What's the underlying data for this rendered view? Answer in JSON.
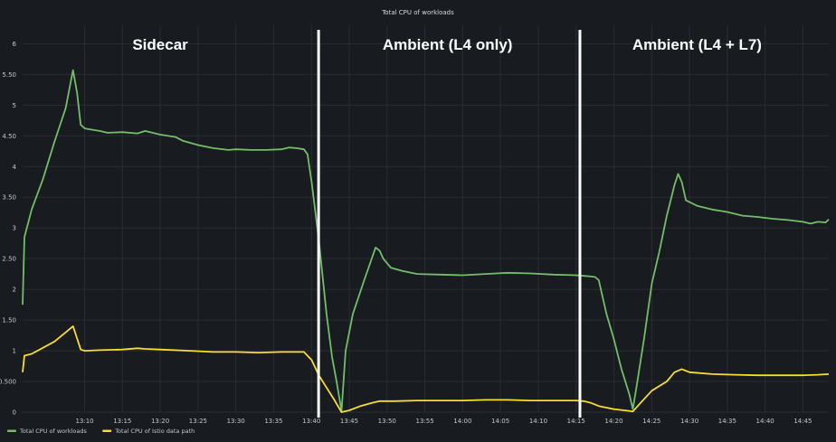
{
  "chart_data": {
    "type": "line",
    "title": "Total CPU of workloads",
    "xlabel": "",
    "ylabel": "",
    "xlim": [
      13.03,
      14.807
    ],
    "ylim": [
      0,
      6.3
    ],
    "grid": true,
    "legend_position": "bottom-left",
    "y_ticks": [
      {
        "v": 0,
        "label": "0"
      },
      {
        "v": 0.5,
        "label": "0.500"
      },
      {
        "v": 1,
        "label": "1"
      },
      {
        "v": 1.5,
        "label": "1.50"
      },
      {
        "v": 2,
        "label": "2"
      },
      {
        "v": 2.5,
        "label": "2.50"
      },
      {
        "v": 3,
        "label": "3"
      },
      {
        "v": 3.5,
        "label": "3.50"
      },
      {
        "v": 4,
        "label": "4"
      },
      {
        "v": 4.5,
        "label": "4.50"
      },
      {
        "v": 5,
        "label": "5"
      },
      {
        "v": 5.5,
        "label": "5.50"
      },
      {
        "v": 6,
        "label": "6"
      }
    ],
    "x_ticks": [
      {
        "v": 13.1667,
        "label": "13:10"
      },
      {
        "v": 13.25,
        "label": "13:15"
      },
      {
        "v": 13.3333,
        "label": "13:20"
      },
      {
        "v": 13.4167,
        "label": "13:25"
      },
      {
        "v": 13.5,
        "label": "13:30"
      },
      {
        "v": 13.5833,
        "label": "13:35"
      },
      {
        "v": 13.6667,
        "label": "13:40"
      },
      {
        "v": 13.75,
        "label": "13:45"
      },
      {
        "v": 13.8333,
        "label": "13:50"
      },
      {
        "v": 13.9167,
        "label": "13:55"
      },
      {
        "v": 14.0,
        "label": "14:00"
      },
      {
        "v": 14.0833,
        "label": "14:05"
      },
      {
        "v": 14.1667,
        "label": "14:10"
      },
      {
        "v": 14.25,
        "label": "14:15"
      },
      {
        "v": 14.3333,
        "label": "14:20"
      },
      {
        "v": 14.4167,
        "label": "14:25"
      },
      {
        "v": 14.5,
        "label": "14:30"
      },
      {
        "v": 14.5833,
        "label": "14:35"
      },
      {
        "v": 14.6667,
        "label": "14:40"
      },
      {
        "v": 14.75,
        "label": "14:45"
      }
    ],
    "dividers": [
      13.6824,
      14.2585
    ],
    "regions": [
      {
        "label": "Sidecar",
        "x": 13.3333
      },
      {
        "label": "Ambient (L4 only)",
        "x": 13.9667
      },
      {
        "label": "Ambient (L4 + L7)",
        "x": 14.5167
      }
    ],
    "series": [
      {
        "name": "Total CPU of workloads",
        "color": "#73bf69",
        "points": [
          [
            13.03,
            1.75
          ],
          [
            13.034,
            2.85
          ],
          [
            13.05,
            3.3
          ],
          [
            13.075,
            3.8
          ],
          [
            13.1,
            4.4
          ],
          [
            13.125,
            4.95
          ],
          [
            13.141,
            5.57
          ],
          [
            13.15,
            5.2
          ],
          [
            13.158,
            4.68
          ],
          [
            13.167,
            4.62
          ],
          [
            13.183,
            4.6
          ],
          [
            13.2,
            4.58
          ],
          [
            13.217,
            4.55
          ],
          [
            13.25,
            4.56
          ],
          [
            13.283,
            4.54
          ],
          [
            13.3,
            4.58
          ],
          [
            13.333,
            4.52
          ],
          [
            13.367,
            4.48
          ],
          [
            13.383,
            4.42
          ],
          [
            13.417,
            4.35
          ],
          [
            13.45,
            4.3
          ],
          [
            13.483,
            4.27
          ],
          [
            13.5,
            4.28
          ],
          [
            13.533,
            4.27
          ],
          [
            13.567,
            4.27
          ],
          [
            13.6,
            4.28
          ],
          [
            13.617,
            4.31
          ],
          [
            13.633,
            4.3
          ],
          [
            13.65,
            4.28
          ],
          [
            13.658,
            4.2
          ],
          [
            13.667,
            3.75
          ],
          [
            13.683,
            2.8
          ],
          [
            13.7,
            1.6
          ],
          [
            13.712,
            0.9
          ],
          [
            13.722,
            0.5
          ],
          [
            13.733,
            0.02
          ],
          [
            13.742,
            1.0
          ],
          [
            13.758,
            1.6
          ],
          [
            13.783,
            2.15
          ],
          [
            13.808,
            2.68
          ],
          [
            13.817,
            2.63
          ],
          [
            13.825,
            2.5
          ],
          [
            13.842,
            2.35
          ],
          [
            13.867,
            2.3
          ],
          [
            13.9,
            2.25
          ],
          [
            13.95,
            2.24
          ],
          [
            14.0,
            2.23
          ],
          [
            14.05,
            2.25
          ],
          [
            14.1,
            2.27
          ],
          [
            14.15,
            2.26
          ],
          [
            14.2,
            2.24
          ],
          [
            14.25,
            2.23
          ],
          [
            14.267,
            2.22
          ],
          [
            14.283,
            2.21
          ],
          [
            14.292,
            2.2
          ],
          [
            14.3,
            2.15
          ],
          [
            14.317,
            1.6
          ],
          [
            14.333,
            1.2
          ],
          [
            14.35,
            0.7
          ],
          [
            14.367,
            0.3
          ],
          [
            14.375,
            0.05
          ],
          [
            14.383,
            0.4
          ],
          [
            14.4,
            1.2
          ],
          [
            14.417,
            2.1
          ],
          [
            14.433,
            2.6
          ],
          [
            14.45,
            3.2
          ],
          [
            14.467,
            3.7
          ],
          [
            14.475,
            3.88
          ],
          [
            14.483,
            3.75
          ],
          [
            14.492,
            3.45
          ],
          [
            14.517,
            3.36
          ],
          [
            14.55,
            3.3
          ],
          [
            14.583,
            3.26
          ],
          [
            14.617,
            3.2
          ],
          [
            14.65,
            3.18
          ],
          [
            14.683,
            3.15
          ],
          [
            14.717,
            3.13
          ],
          [
            14.75,
            3.1
          ],
          [
            14.767,
            3.07
          ],
          [
            14.783,
            3.1
          ],
          [
            14.8,
            3.09
          ],
          [
            14.807,
            3.14
          ]
        ]
      },
      {
        "name": "Total CPU of Istio data path",
        "color": "#fade2a",
        "points": [
          [
            13.03,
            0.65
          ],
          [
            13.034,
            0.92
          ],
          [
            13.05,
            0.95
          ],
          [
            13.075,
            1.05
          ],
          [
            13.1,
            1.15
          ],
          [
            13.125,
            1.3
          ],
          [
            13.141,
            1.4
          ],
          [
            13.15,
            1.2
          ],
          [
            13.158,
            1.02
          ],
          [
            13.167,
            1.0
          ],
          [
            13.2,
            1.01
          ],
          [
            13.25,
            1.02
          ],
          [
            13.283,
            1.04
          ],
          [
            13.3,
            1.03
          ],
          [
            13.333,
            1.02
          ],
          [
            13.4,
            1.0
          ],
          [
            13.45,
            0.98
          ],
          [
            13.5,
            0.98
          ],
          [
            13.55,
            0.97
          ],
          [
            13.6,
            0.98
          ],
          [
            13.633,
            0.98
          ],
          [
            13.65,
            0.98
          ],
          [
            13.667,
            0.85
          ],
          [
            13.683,
            0.6
          ],
          [
            13.7,
            0.4
          ],
          [
            13.717,
            0.2
          ],
          [
            13.733,
            0.0
          ],
          [
            13.75,
            0.03
          ],
          [
            13.775,
            0.1
          ],
          [
            13.8,
            0.15
          ],
          [
            13.817,
            0.18
          ],
          [
            13.85,
            0.18
          ],
          [
            13.9,
            0.19
          ],
          [
            13.95,
            0.19
          ],
          [
            14.0,
            0.19
          ],
          [
            14.05,
            0.2
          ],
          [
            14.1,
            0.2
          ],
          [
            14.15,
            0.19
          ],
          [
            14.2,
            0.19
          ],
          [
            14.25,
            0.19
          ],
          [
            14.267,
            0.18
          ],
          [
            14.283,
            0.15
          ],
          [
            14.3,
            0.1
          ],
          [
            14.333,
            0.05
          ],
          [
            14.367,
            0.02
          ],
          [
            14.375,
            0.01
          ],
          [
            14.392,
            0.15
          ],
          [
            14.417,
            0.35
          ],
          [
            14.45,
            0.5
          ],
          [
            14.467,
            0.65
          ],
          [
            14.483,
            0.7
          ],
          [
            14.5,
            0.65
          ],
          [
            14.55,
            0.62
          ],
          [
            14.6,
            0.61
          ],
          [
            14.65,
            0.6
          ],
          [
            14.7,
            0.6
          ],
          [
            14.75,
            0.6
          ],
          [
            14.783,
            0.61
          ],
          [
            14.807,
            0.62
          ]
        ]
      }
    ]
  }
}
